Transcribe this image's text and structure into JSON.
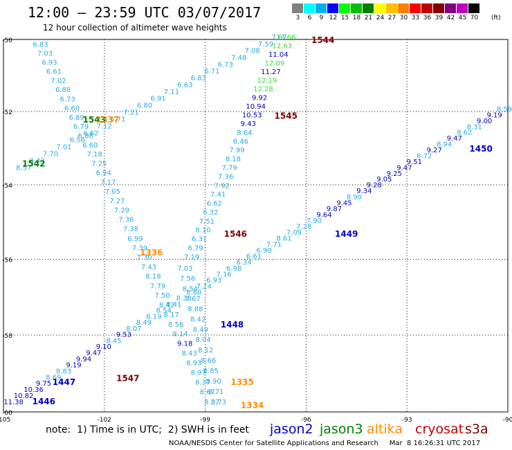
{
  "title": "12:00 – 23:59 UTC 03/07/2017",
  "subtitle": "12 hour collection of altimeter wave heights",
  "scale_unit": "(ft)",
  "scale": [
    {
      "label": "3",
      "color": "#808080"
    },
    {
      "label": "6",
      "color": "#00ffff"
    },
    {
      "label": "9",
      "color": "#00b0f0"
    },
    {
      "label": "12",
      "color": "#0000ff"
    },
    {
      "label": "15",
      "color": "#00ff00"
    },
    {
      "label": "18",
      "color": "#00c000"
    },
    {
      "label": "21",
      "color": "#008000"
    },
    {
      "label": "24",
      "color": "#ffff00"
    },
    {
      "label": "27",
      "color": "#ffc000"
    },
    {
      "label": "30",
      "color": "#ff8000"
    },
    {
      "label": "33",
      "color": "#ff0000"
    },
    {
      "label": "36",
      "color": "#c00000"
    },
    {
      "label": "39",
      "color": "#800000"
    },
    {
      "label": "42",
      "color": "#800080"
    },
    {
      "label": "45",
      "color": "#c000c0"
    },
    {
      "label": "70",
      "color": "#000000"
    }
  ],
  "axes": {
    "lon_ticks": [
      "-105",
      "-102",
      "-99",
      "-96",
      "-93",
      "-90"
    ],
    "lat_ticks": [
      "-50",
      "-52",
      "-54",
      "-56",
      "-58",
      "-60"
    ]
  },
  "tracks": [
    {
      "name": "track 1446-1450",
      "lon_start": -104.7,
      "lat_start": -59.8,
      "lon_end": -90.1,
      "lat_end": -52.0,
      "values": [
        "11.38",
        "10.82",
        "10.36",
        "9.75",
        "8.69",
        "8.83",
        "9.19",
        "9.94",
        "9.47",
        "9.10",
        "8.45",
        "9.53",
        "8.07",
        "8.49",
        "8.19",
        "8.54",
        "8.41",
        "8.38",
        "8.60",
        "7.24",
        "6.93",
        "7.16",
        "6.98",
        "6.34",
        "6.61",
        "6.90",
        "7.71",
        "8.61",
        "7.09",
        "7.28",
        "7.90",
        "9.64",
        "9.87",
        "9.45",
        "8.90",
        "9.34",
        "9.28",
        "9.05",
        "9.25",
        "9.47",
        "9.51",
        "8.72",
        "9.27",
        "8.94",
        "9.47",
        "8.62",
        "8.31",
        "9.00",
        "9.19",
        "8.59"
      ],
      "colors_by_value": true,
      "labels": [
        {
          "text": "1446",
          "lon": -103.8,
          "lat": -59.8,
          "color": "#0000c0"
        },
        {
          "text": "1447",
          "lon": -103.2,
          "lat": -59.3,
          "color": "#0000c0"
        },
        {
          "text": "1448",
          "lon": -98.2,
          "lat": -57.8,
          "color": "#0000c0"
        },
        {
          "text": "1449",
          "lon": -94.8,
          "lat": -55.4,
          "color": "#0000c0"
        },
        {
          "text": "1450",
          "lon": -90.8,
          "lat": -53.1,
          "color": "#0000c0"
        }
      ]
    },
    {
      "name": "track 1542-1547",
      "lon_start": -104.4,
      "lat_start": -53.6,
      "lon_end": -96.8,
      "lat_end": -50.0,
      "values": [
        "8.57",
        "8.43",
        "7.70",
        "7.01",
        "6.56",
        "6.62",
        "7.12",
        "6.71",
        "7.21",
        "6.80",
        "6.91",
        "7.11",
        "6.63",
        "6.83",
        "6.71",
        "6.73",
        "7.48",
        "7.08",
        "7.59",
        "7.67"
      ],
      "colors_by_value": true,
      "labels": [
        {
          "text": "1542",
          "lon": -104.1,
          "lat": -53.5,
          "color": "#008000"
        },
        {
          "text": "1543",
          "lon": -102.3,
          "lat": -52.3,
          "color": "#008000"
        }
      ]
    },
    {
      "name": "track 1544-1546",
      "lon_start": -99.4,
      "lat_start": -56.0,
      "lon_end": -96.6,
      "lat_end": -50.0,
      "values": [
        "7.19",
        "6.79",
        "6.31",
        "8.10",
        "7.51",
        "6.32",
        "6.62",
        "7.41",
        "7.92",
        "7.36",
        "7.79",
        "8.18",
        "7.99",
        "8.46",
        "8.64",
        "9.43",
        "10.53",
        "10.94",
        "9.92",
        "12.28",
        "12.19",
        "11.27",
        "12.09",
        "11.04",
        "12.63",
        "13.66"
      ],
      "colors_by_value": true,
      "labels": [
        {
          "text": "1544",
          "lon": -95.5,
          "lat": -50.1,
          "color": "#800000"
        },
        {
          "text": "1545",
          "lon": -96.6,
          "lat": -52.2,
          "color": "#800000"
        },
        {
          "text": "1546",
          "lon": -98.1,
          "lat": -55.4,
          "color": "#800000"
        },
        {
          "text": "1547",
          "lon": -101.3,
          "lat": -59.2,
          "color": "#800000"
        }
      ]
    },
    {
      "name": "track 1334-1337",
      "lon_start": -103.9,
      "lat_start": -50.2,
      "lon_end": -98.8,
      "lat_end": -59.8,
      "values": [
        "6.83",
        "7.03",
        "6.93",
        "6.61",
        "7.02",
        "6.88",
        "6.73",
        "6.60",
        "6.89",
        "6.79",
        "6.88",
        "6.60",
        "7.18",
        "7.25",
        "6.94",
        "7.17",
        "7.05",
        "7.27",
        "7.29",
        "7.36",
        "7.38",
        "6.99",
        "7.39",
        "7.30",
        "7.43",
        "8.18",
        "7.79",
        "7.50",
        "8.42",
        "8.17",
        "8.56",
        "8.14",
        "9.18",
        "8.43",
        "8.93",
        "8.97",
        "8.37",
        "8.67",
        "8.37"
      ],
      "colors_by_value": true,
      "labels": [
        {
          "text": "1337",
          "lon": -101.9,
          "lat": -52.3,
          "color": "#ff8c00"
        },
        {
          "text": "1336",
          "lon": -100.6,
          "lat": -55.9,
          "color": "#ff8c00"
        },
        {
          "text": "1335",
          "lon": -97.9,
          "lat": -59.3,
          "color": "#ff8c00"
        },
        {
          "text": "1334",
          "lon": -97.6,
          "lat": -59.9,
          "color": "#ff8c00"
        }
      ]
    },
    {
      "name": "track 1335 branch",
      "lon_start": -99.6,
      "lat_start": -56.3,
      "lon_end": -98.6,
      "lat_end": -59.8,
      "values": [
        "7.03",
        "7.56",
        "8.54",
        "7.67",
        "8.88",
        "8.42",
        "8.49",
        "8.04",
        "8.12",
        "8.66",
        "8.85",
        "8.90",
        "8.71",
        "8.73"
      ],
      "colors_by_value": true,
      "labels": []
    }
  ],
  "note": "note:  1) Time is in UTC;  2) SWH is in feet",
  "legend": [
    {
      "label": "jason2",
      "color": "#0000c0"
    },
    {
      "label": "jason3",
      "color": "#008000"
    },
    {
      "label": "altika",
      "color": "#ff8c00"
    },
    {
      "label": "cryosat",
      "color": "#c00000"
    },
    {
      "label": "s3a",
      "color": "#800000"
    }
  ],
  "credit": "NOAA/NESDIS Center for Satellite Applications and Research     Mar  8 16:26:31 UTC 2017"
}
